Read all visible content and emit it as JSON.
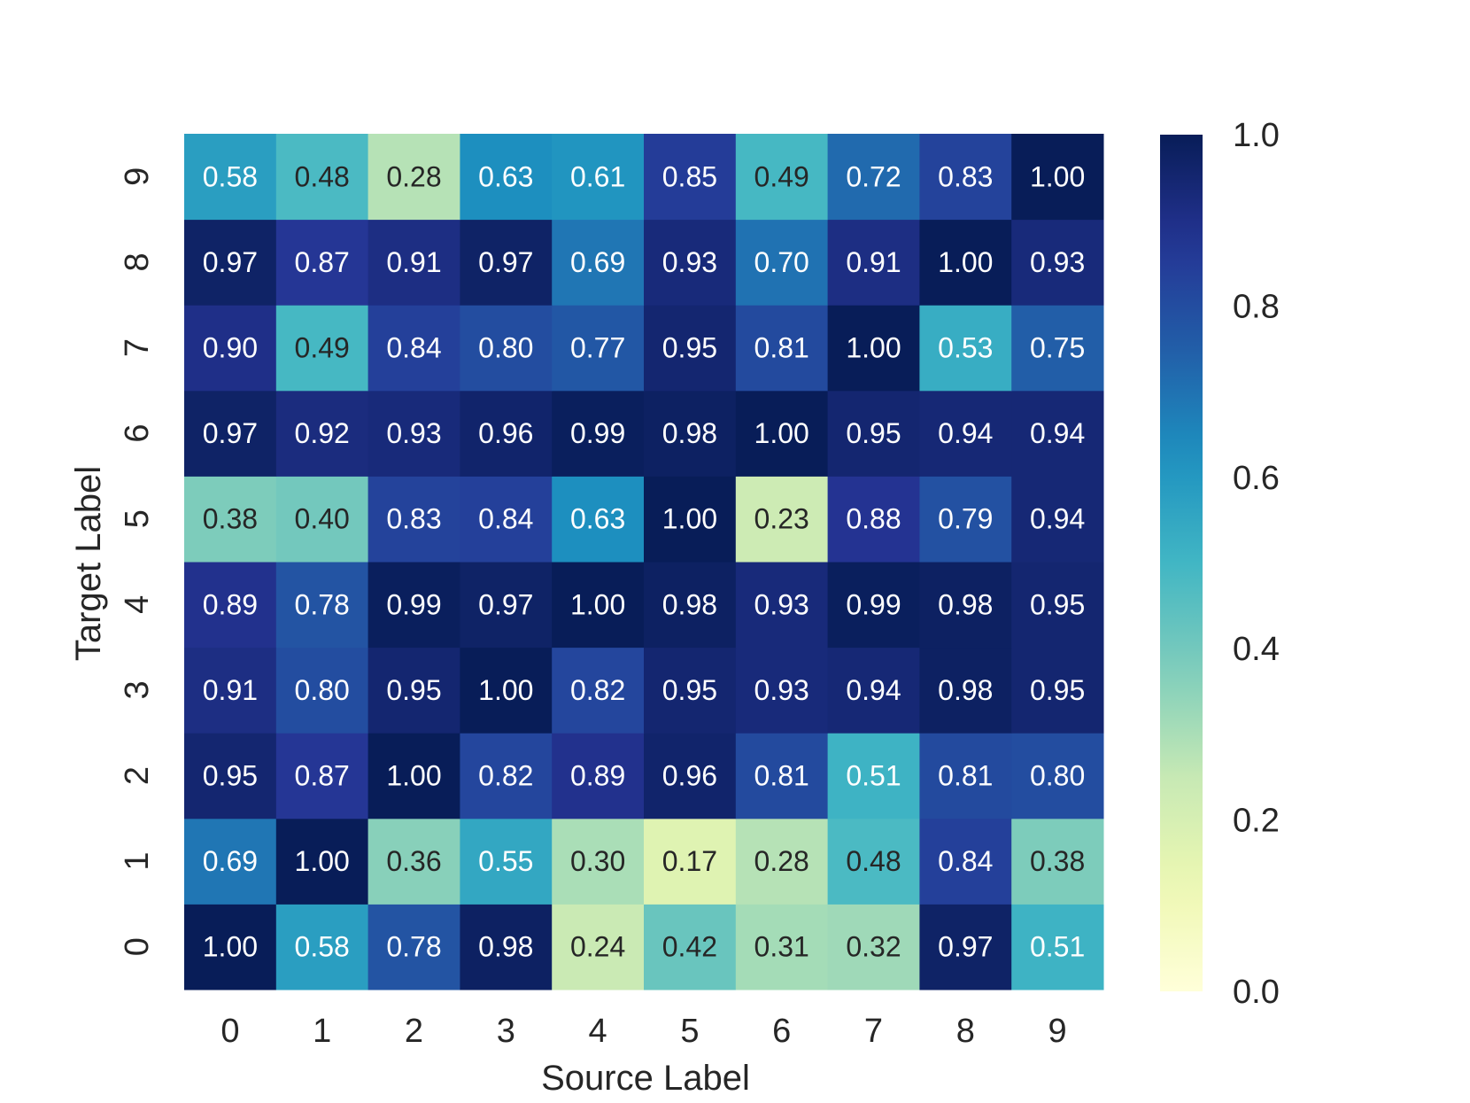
{
  "chart_data": {
    "type": "heatmap",
    "xlabel": "Source Label",
    "ylabel": "Target Label",
    "x_categories": [
      "0",
      "1",
      "2",
      "3",
      "4",
      "5",
      "6",
      "7",
      "8",
      "9"
    ],
    "y_categories": [
      "0",
      "1",
      "2",
      "3",
      "4",
      "5",
      "6",
      "7",
      "8",
      "9"
    ],
    "values": [
      [
        1.0,
        0.58,
        0.78,
        0.98,
        0.24,
        0.42,
        0.31,
        0.32,
        0.97,
        0.51
      ],
      [
        0.69,
        1.0,
        0.36,
        0.55,
        0.3,
        0.17,
        0.28,
        0.48,
        0.84,
        0.38
      ],
      [
        0.95,
        0.87,
        1.0,
        0.82,
        0.89,
        0.96,
        0.81,
        0.51,
        0.81,
        0.8
      ],
      [
        0.91,
        0.8,
        0.95,
        1.0,
        0.82,
        0.95,
        0.93,
        0.94,
        0.98,
        0.95
      ],
      [
        0.89,
        0.78,
        0.99,
        0.97,
        1.0,
        0.98,
        0.93,
        0.99,
        0.98,
        0.95
      ],
      [
        0.38,
        0.4,
        0.83,
        0.84,
        0.63,
        1.0,
        0.23,
        0.88,
        0.79,
        0.94
      ],
      [
        0.97,
        0.92,
        0.93,
        0.96,
        0.99,
        0.98,
        1.0,
        0.95,
        0.94,
        0.94
      ],
      [
        0.9,
        0.49,
        0.84,
        0.8,
        0.77,
        0.95,
        0.81,
        1.0,
        0.53,
        0.75
      ],
      [
        0.97,
        0.87,
        0.91,
        0.97,
        0.69,
        0.93,
        0.7,
        0.91,
        1.0,
        0.93
      ],
      [
        0.58,
        0.48,
        0.28,
        0.63,
        0.61,
        0.85,
        0.49,
        0.72,
        0.83,
        1.0
      ]
    ],
    "value_range": [
      0.0,
      1.0
    ],
    "colormap": "YlGnBu",
    "colorbar": {
      "ticks": [
        "0.0",
        "0.2",
        "0.4",
        "0.6",
        "0.8",
        "1.0"
      ],
      "range": [
        0.0,
        1.0
      ]
    },
    "annotations": true,
    "grid": false
  }
}
